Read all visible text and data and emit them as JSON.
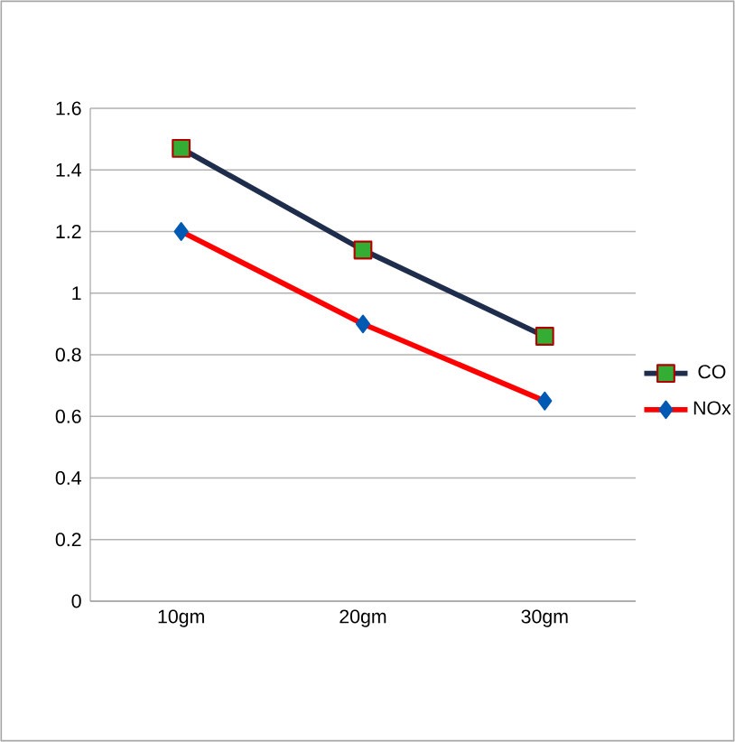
{
  "chart_data": {
    "type": "line",
    "categories": [
      "10gm",
      "20gm",
      "30gm"
    ],
    "series": [
      {
        "name": "CO",
        "color": "#1f2d4d",
        "marker": "square",
        "values": [
          1.47,
          1.14,
          0.86
        ]
      },
      {
        "name": "NOx",
        "color": "#ff0000",
        "marker": "diamond",
        "values": [
          1.2,
          0.9,
          0.65
        ]
      }
    ],
    "ylim": [
      0,
      1.6
    ],
    "yticks": [
      0,
      0.2,
      0.4,
      0.6,
      0.8,
      1,
      1.2,
      1.4,
      1.6
    ],
    "grid": "y",
    "legend": "right"
  }
}
